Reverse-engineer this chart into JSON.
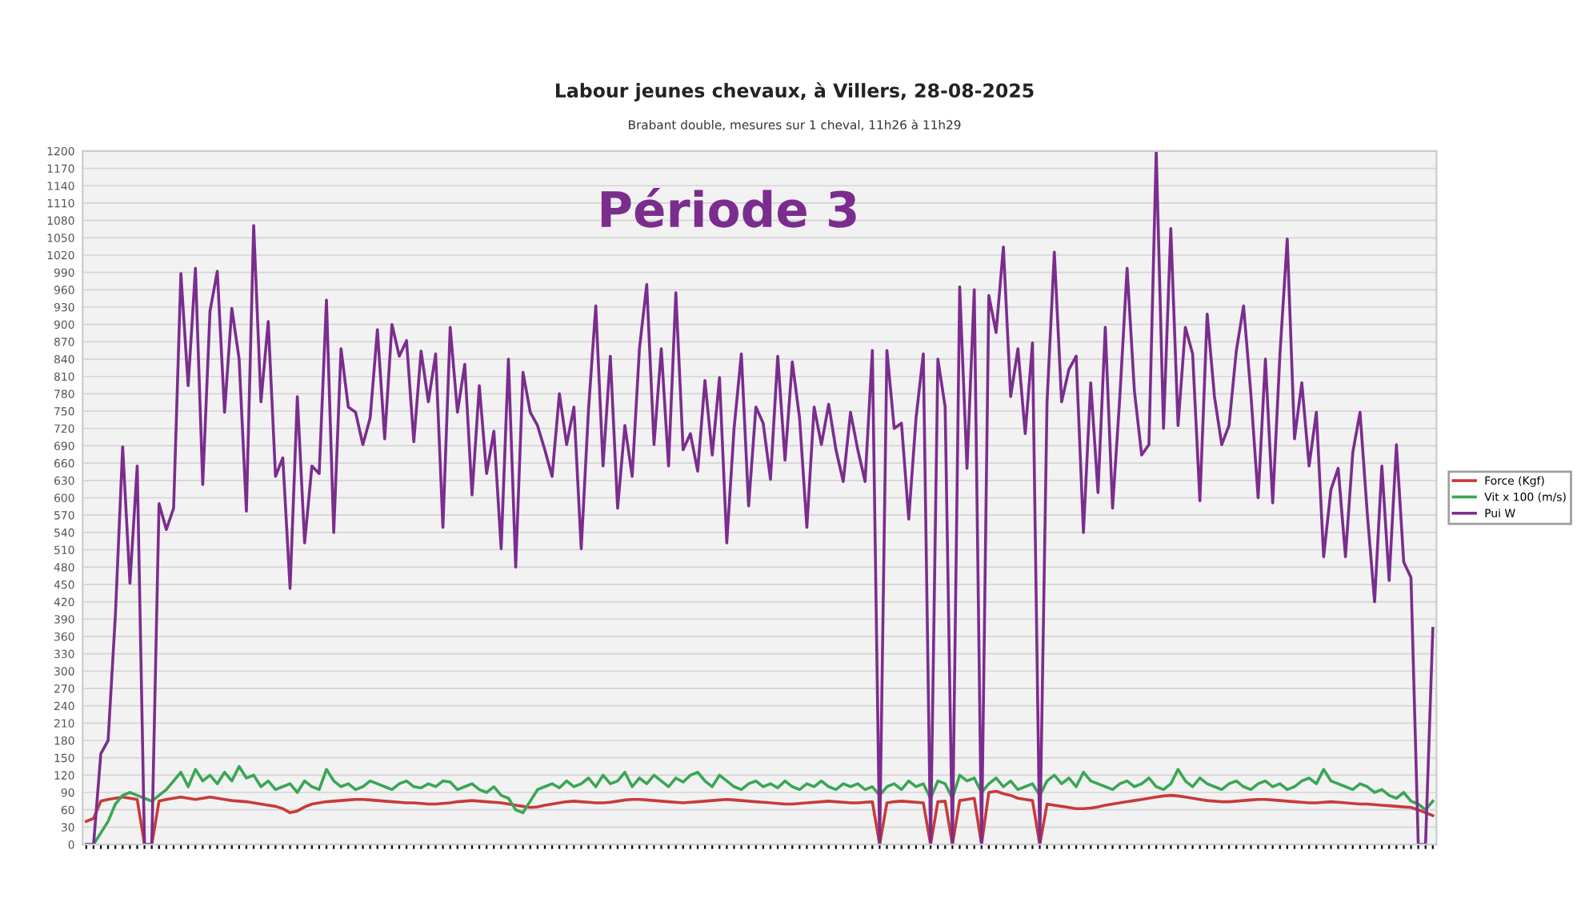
{
  "chart_data": {
    "type": "line",
    "title": "Labour jeunes chevaux, à Villers, 28-08-2025",
    "subtitle": "Brabant double, mesures sur 1 cheval, 11h26 à 11h29",
    "annotations": [
      "Période 3"
    ],
    "categories": [
      null,
      null,
      null,
      null,
      null,
      null,
      null,
      null,
      null,
      null,
      null,
      null,
      null,
      null,
      null,
      null,
      null,
      null,
      null,
      null,
      null,
      null,
      null,
      null,
      null,
      null,
      null,
      null,
      null,
      null,
      null,
      null,
      null,
      null,
      null,
      null,
      null,
      null,
      null,
      null,
      null,
      null,
      null,
      null,
      null,
      null,
      null,
      null,
      null,
      null,
      null,
      null,
      null,
      null,
      null,
      null,
      null,
      null,
      null,
      null,
      null,
      null,
      null,
      null,
      null,
      null,
      null,
      null,
      null,
      null,
      null,
      null,
      null,
      null,
      null,
      null,
      null,
      null,
      null,
      null,
      null,
      null,
      null,
      null,
      null,
      null,
      null,
      null,
      null,
      null,
      null,
      null,
      null,
      null,
      null,
      null,
      null,
      null,
      null,
      null,
      null,
      null,
      null,
      null,
      null,
      null,
      null,
      null,
      null,
      null,
      null,
      null,
      null,
      null,
      null,
      null,
      null,
      null,
      null,
      null,
      null,
      null,
      null,
      null,
      null,
      null,
      null,
      null,
      null,
      null,
      null,
      null,
      null,
      null,
      null,
      null,
      null,
      null,
      null,
      null,
      null,
      null,
      null,
      null,
      null,
      null,
      null,
      null,
      null,
      null,
      null,
      null,
      null,
      null,
      null,
      null,
      null,
      null,
      null,
      null,
      null,
      null,
      null,
      null,
      null,
      null,
      null,
      null,
      null,
      null,
      null,
      null,
      null,
      null,
      null,
      null,
      null,
      null,
      null,
      null,
      null,
      null,
      null,
      null,
      null,
      null
    ],
    "series": [
      {
        "name": "Force (Kgf)",
        "color": "#c83a3a",
        "values": [
          40,
          45,
          75,
          78,
          80,
          82,
          80,
          78,
          0,
          0,
          75,
          78,
          80,
          82,
          80,
          78,
          80,
          82,
          80,
          78,
          76,
          75,
          74,
          72,
          70,
          68,
          66,
          62,
          55,
          58,
          65,
          70,
          72,
          74,
          75,
          76,
          77,
          78,
          78,
          77,
          76,
          75,
          74,
          73,
          72,
          72,
          71,
          70,
          70,
          71,
          72,
          74,
          75,
          76,
          75,
          74,
          73,
          72,
          70,
          68,
          66,
          64,
          65,
          68,
          70,
          72,
          74,
          75,
          74,
          73,
          72,
          72,
          73,
          75,
          77,
          78,
          78,
          77,
          76,
          75,
          74,
          73,
          72,
          73,
          74,
          75,
          76,
          77,
          78,
          77,
          76,
          75,
          74,
          73,
          72,
          71,
          70,
          70,
          71,
          72,
          73,
          74,
          75,
          74,
          73,
          72,
          72,
          73,
          74,
          0,
          72,
          74,
          75,
          74,
          73,
          72,
          0,
          74,
          75,
          0,
          76,
          78,
          80,
          0,
          90,
          92,
          88,
          85,
          80,
          78,
          76,
          0,
          70,
          68,
          66,
          64,
          62,
          62,
          63,
          65,
          68,
          70,
          72,
          74,
          76,
          78,
          80,
          82,
          84,
          85,
          84,
          82,
          80,
          78,
          76,
          75,
          74,
          74,
          75,
          76,
          77,
          78,
          78,
          77,
          76,
          75,
          74,
          73,
          72,
          72,
          73,
          74,
          73,
          72,
          71,
          70,
          70,
          69,
          68,
          67,
          66,
          65,
          64,
          60,
          55,
          50
        ]
      },
      {
        "name": "Vit x 100 (m/s)",
        "color": "#3aa655",
        "values": [
          0,
          0,
          20,
          40,
          70,
          85,
          90,
          85,
          80,
          75,
          85,
          95,
          110,
          125,
          100,
          130,
          110,
          120,
          105,
          125,
          110,
          135,
          115,
          120,
          100,
          110,
          95,
          100,
          105,
          90,
          110,
          100,
          95,
          130,
          110,
          100,
          105,
          95,
          100,
          110,
          105,
          100,
          95,
          105,
          110,
          100,
          98,
          105,
          100,
          110,
          108,
          95,
          100,
          105,
          95,
          90,
          100,
          85,
          80,
          60,
          55,
          75,
          95,
          100,
          105,
          98,
          110,
          100,
          105,
          115,
          100,
          120,
          105,
          110,
          125,
          100,
          115,
          105,
          120,
          110,
          100,
          115,
          108,
          120,
          125,
          110,
          100,
          120,
          110,
          100,
          95,
          105,
          110,
          100,
          105,
          98,
          110,
          100,
          95,
          105,
          100,
          110,
          100,
          95,
          105,
          100,
          105,
          95,
          100,
          85,
          100,
          105,
          95,
          110,
          100,
          105,
          80,
          110,
          105,
          80,
          120,
          110,
          115,
          90,
          105,
          115,
          100,
          110,
          95,
          100,
          105,
          85,
          110,
          120,
          105,
          115,
          100,
          125,
          110,
          105,
          100,
          95,
          105,
          110,
          100,
          105,
          115,
          100,
          95,
          105,
          130,
          110,
          100,
          115,
          105,
          100,
          95,
          105,
          110,
          100,
          95,
          105,
          110,
          100,
          105,
          95,
          100,
          110,
          115,
          105,
          130,
          110,
          105,
          100,
          95,
          105,
          100,
          90,
          95,
          85,
          80,
          90,
          75,
          70,
          60,
          75
        ]
      },
      {
        "name": "Pui W",
        "color": "#7b2d8e",
        "values": [
          0,
          0,
          157,
          180,
          397,
          688,
          452,
          655,
          0,
          0,
          590,
          545,
          582,
          988,
          794,
          997,
          623,
          923,
          992,
          748,
          928,
          840,
          577,
          1071,
          766,
          905,
          637,
          669,
          443,
          775,
          522,
          655,
          642,
          942,
          540,
          858,
          757,
          748,
          692,
          738,
          891,
          702,
          900,
          845,
          872,
          697,
          854,
          766,
          849,
          549,
          895,
          748,
          831,
          605,
          794,
          642,
          715,
          512,
          840,
          480,
          817,
          748,
          725,
          683,
          637,
          780,
          692,
          757,
          512,
          752,
          932,
          655,
          845,
          582,
          725,
          637,
          858,
          969,
          692,
          858,
          655,
          955,
          683,
          711,
          646,
          803,
          674,
          808,
          522,
          720,
          849,
          586,
          757,
          729,
          632,
          845,
          665,
          835,
          738,
          549,
          757,
          692,
          762,
          683,
          628,
          748,
          683,
          628,
          855,
          0,
          855,
          720,
          729,
          563,
          738,
          849,
          0,
          840,
          757,
          0,
          965,
          651,
          960,
          0,
          950,
          886,
          1034,
          775,
          858,
          711,
          868,
          0,
          766,
          1025,
          766,
          822,
          845,
          540,
          799,
          609,
          895,
          582,
          775,
          997,
          785,
          674,
          692,
          1200,
          720,
          1066,
          725,
          895,
          849,
          595,
          918,
          775,
          692,
          725,
          854,
          932,
          780,
          600,
          840,
          591,
          849,
          1048,
          702,
          799,
          655,
          748,
          498,
          614,
          651,
          498,
          678,
          748,
          572,
          420,
          655,
          457,
          692,
          489,
          462,
          0,
          0,
          374
        ]
      }
    ],
    "ylim": [
      0,
      1200
    ],
    "yticks": [
      0,
      30,
      60,
      90,
      120,
      150,
      180,
      210,
      240,
      270,
      300,
      330,
      360,
      390,
      420,
      450,
      480,
      510,
      540,
      570,
      600,
      630,
      660,
      690,
      720,
      750,
      780,
      810,
      840,
      870,
      900,
      930,
      960,
      990,
      1020,
      1050,
      1080,
      1110,
      1140,
      1170,
      1200
    ],
    "tick_labels": "y",
    "grid": "y",
    "legend": "right",
    "line_style": "solid",
    "marker": "none"
  }
}
